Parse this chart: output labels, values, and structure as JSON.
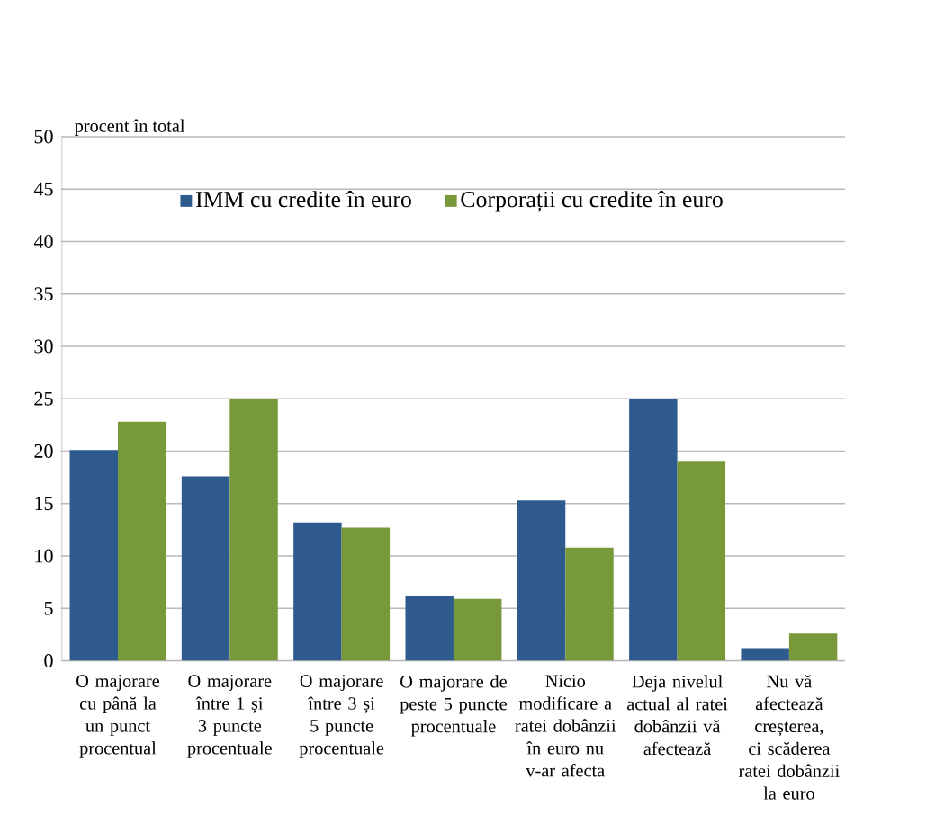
{
  "chart_data": {
    "type": "bar",
    "ylabel": "procent în total",
    "categories": [
      "O majorare cu până la un punct procentual",
      "O majorare între 1 și 3 puncte procentuale",
      "O majorare între 3 și 5 puncte procentuale",
      "O majorare de peste 5 puncte procentuale",
      "Nicio modificare a ratei dobânzii în euro nu v-ar afecta",
      "Deja nivelul actual al ratei dobânzii vă afectează",
      "Nu vă afectează creșterea, ci scăderea ratei dobânzii la euro"
    ],
    "series": [
      {
        "name": "IMM cu credite în euro",
        "color": "#2e5a8e",
        "values": [
          20.1,
          17.6,
          13.2,
          6.2,
          15.3,
          25.0,
          1.2
        ]
      },
      {
        "name": "Corporații cu credite în euro",
        "color": "#77993a",
        "values": [
          22.8,
          25.0,
          12.7,
          5.9,
          10.8,
          19.0,
          2.6
        ]
      }
    ],
    "ylim": [
      0,
      50
    ],
    "yticks": [
      0,
      5,
      10,
      15,
      20,
      25,
      30,
      35,
      40,
      45,
      50
    ],
    "grid": "y",
    "legend": "top"
  }
}
